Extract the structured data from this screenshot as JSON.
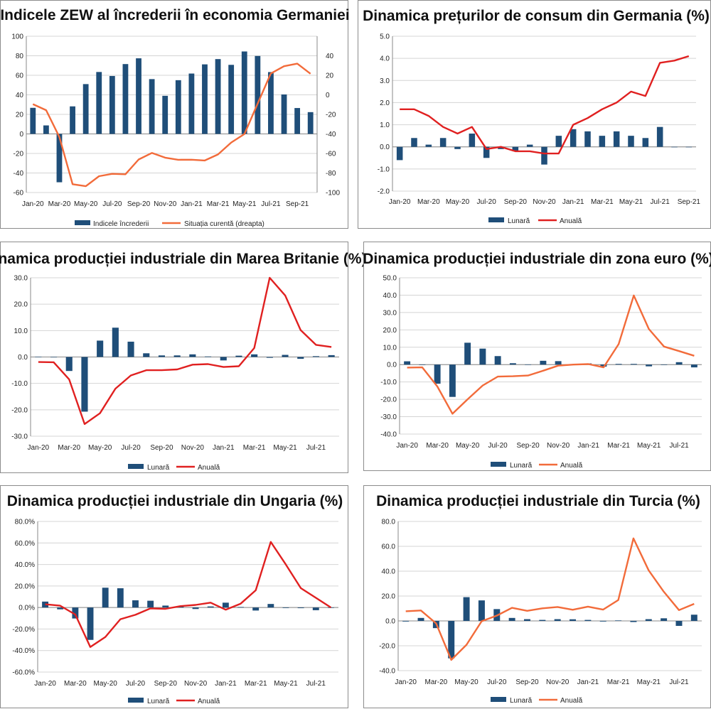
{
  "colors": {
    "bar": "#1f4e79",
    "red": "#e02020",
    "orange": "#f26b3a",
    "grid": "#d4d4d4",
    "axis": "#888888"
  },
  "chart_data": [
    {
      "type": "bar",
      "title": "Indicele ZEW al încrederii în economia Germaniei",
      "categories": [
        "Jan-20",
        "Feb-20",
        "Mar-20",
        "Apr-20",
        "May-20",
        "Jun-20",
        "Jul-20",
        "Aug-20",
        "Sep-20",
        "Oct-20",
        "Nov-20",
        "Dec-20",
        "Jan-21",
        "Feb-21",
        "Mar-21",
        "Apr-21",
        "May-21",
        "Jun-21",
        "Jul-21",
        "Aug-21",
        "Sep-21",
        "Oct-21"
      ],
      "xtick_labels": [
        "Jan-20",
        "Mar-20",
        "May-20",
        "Jul-20",
        "Sep-20",
        "Nov-20",
        "Jan-21",
        "Mar-21",
        "May-21",
        "Jul-21",
        "Sep-21"
      ],
      "series": [
        {
          "name": "Indicele încrederii",
          "kind": "bar",
          "axis": "left",
          "color": "#1f4e79",
          "values": [
            26.7,
            8.7,
            -49.5,
            28.2,
            51.0,
            63.4,
            59.3,
            71.5,
            77.4,
            56.1,
            39.0,
            55.0,
            61.8,
            71.2,
            76.6,
            70.7,
            84.4,
            79.8,
            63.3,
            40.4,
            26.5,
            22.3
          ]
        },
        {
          "name": "Situația curentă (dreapta)",
          "kind": "line",
          "axis": "right",
          "color": "#f26b3a",
          "values": [
            -9.5,
            -15.7,
            -43.1,
            -91.5,
            -93.5,
            -83.3,
            -80.9,
            -81.3,
            -66.2,
            -59.5,
            -64.3,
            -66.5,
            -66.4,
            -67.2,
            -61.0,
            -48.8,
            -40.1,
            -9.1,
            21.9,
            29.3,
            31.9,
            21.6
          ]
        }
      ],
      "ylim_left": [
        -60,
        100
      ],
      "yticks_left": [
        "100",
        "80",
        "60",
        "40",
        "20",
        "0",
        "-20",
        "-40",
        "-60"
      ],
      "ylim_right": [
        -100,
        60
      ],
      "yticks_right": [
        "40",
        "20",
        "0",
        "-20",
        "-40",
        "-60",
        "-80",
        "-100"
      ]
    },
    {
      "type": "bar",
      "title": "Dinamica prețurilor de consum din Germania (%)",
      "categories": [
        "Jan-20",
        "Feb-20",
        "Mar-20",
        "Apr-20",
        "May-20",
        "Jun-20",
        "Jul-20",
        "Aug-20",
        "Sep-20",
        "Oct-20",
        "Nov-20",
        "Dec-20",
        "Jan-21",
        "Feb-21",
        "Mar-21",
        "Apr-21",
        "May-21",
        "Jun-21",
        "Jul-21",
        "Aug-21",
        "Sep-21"
      ],
      "xtick_labels": [
        "Jan-20",
        "Mar-20",
        "May-20",
        "Jul-20",
        "Sep-20",
        "Nov-20",
        "Jan-21",
        "Mar-21",
        "May-21",
        "Jul-21",
        "Sep-21"
      ],
      "series": [
        {
          "name": "Lunară",
          "kind": "bar",
          "color": "#1f4e79",
          "values": [
            -0.6,
            0.4,
            0.1,
            0.4,
            -0.1,
            0.6,
            -0.5,
            -0.1,
            -0.2,
            0.1,
            -0.8,
            0.5,
            0.8,
            0.7,
            0.5,
            0.7,
            0.5,
            0.4,
            0.9,
            0.0,
            0.0
          ]
        },
        {
          "name": "Anuală",
          "kind": "line",
          "color": "#e02020",
          "values": [
            1.7,
            1.7,
            1.4,
            0.9,
            0.6,
            0.9,
            -0.1,
            0.0,
            -0.2,
            -0.2,
            -0.3,
            -0.3,
            1.0,
            1.3,
            1.7,
            2.0,
            2.5,
            2.3,
            3.8,
            3.9,
            4.1
          ]
        }
      ],
      "ylim": [
        -2,
        5
      ],
      "yticks": [
        "5.0",
        "4.0",
        "3.0",
        "2.0",
        "1.0",
        "0.0",
        "-1.0",
        "-2.0"
      ]
    },
    {
      "type": "bar",
      "title": "Dinamica producției industriale din Marea Britanie (%)",
      "categories": [
        "Jan-20",
        "Feb-20",
        "Mar-20",
        "Apr-20",
        "May-20",
        "Jun-20",
        "Jul-20",
        "Aug-20",
        "Sep-20",
        "Oct-20",
        "Nov-20",
        "Dec-20",
        "Jan-21",
        "Feb-21",
        "Mar-21",
        "Apr-21",
        "May-21",
        "Jun-21",
        "Jul-21",
        "Aug-21"
      ],
      "xtick_labels": [
        "Jan-20",
        "Mar-20",
        "May-20",
        "Jul-20",
        "Sep-20",
        "Nov-20",
        "Jan-21",
        "Mar-21",
        "May-21",
        "Jul-21"
      ],
      "series": [
        {
          "name": "Lunară",
          "kind": "bar",
          "color": "#1f4e79",
          "values": [
            0.1,
            -0.1,
            -5.3,
            -20.7,
            6.2,
            11.1,
            5.8,
            1.4,
            0.6,
            0.6,
            1.0,
            0.2,
            -1.3,
            0.5,
            1.0,
            -0.3,
            0.8,
            -0.7,
            0.3,
            0.7
          ]
        },
        {
          "name": "Anuală",
          "kind": "line",
          "color": "#e02020",
          "values": [
            -1.9,
            -2.0,
            -8.5,
            -25.4,
            -21.3,
            -12.0,
            -7.0,
            -5.0,
            -5.0,
            -4.7,
            -2.9,
            -2.7,
            -3.8,
            -3.5,
            3.4,
            30.0,
            23.3,
            10.2,
            4.6,
            3.8
          ]
        }
      ],
      "ylim": [
        -30,
        30
      ],
      "yticks": [
        "30.0",
        "20.0",
        "10.0",
        "0.0",
        "-10.0",
        "-20.0",
        "-30.0"
      ]
    },
    {
      "type": "bar",
      "title": "Dinamica producției industriale din zona euro (%)",
      "categories": [
        "Jan-20",
        "Feb-20",
        "Mar-20",
        "Apr-20",
        "May-20",
        "Jun-20",
        "Jul-20",
        "Aug-20",
        "Sep-20",
        "Oct-20",
        "Nov-20",
        "Dec-20",
        "Jan-21",
        "Feb-21",
        "Mar-21",
        "Apr-21",
        "May-21",
        "Jun-21",
        "Jul-21",
        "Aug-21"
      ],
      "xtick_labels": [
        "Jan-20",
        "Mar-20",
        "May-20",
        "Jul-20",
        "Sep-20",
        "Nov-20",
        "Jan-21",
        "Mar-21",
        "May-21",
        "Jul-21"
      ],
      "series": [
        {
          "name": "Lunară",
          "kind": "bar",
          "color": "#1f4e79",
          "values": [
            1.9,
            0.0,
            -11.0,
            -18.6,
            12.6,
            9.2,
            4.9,
            0.8,
            0.1,
            2.2,
            2.0,
            -0.1,
            0.7,
            -1.2,
            0.4,
            0.4,
            -1.0,
            -0.1,
            1.4,
            -1.6
          ]
        },
        {
          "name": "Anuală",
          "kind": "line",
          "color": "#f26b3a",
          "values": [
            -1.7,
            -1.6,
            -12.6,
            -28.3,
            -20.0,
            -12.0,
            -6.9,
            -6.7,
            -6.3,
            -3.5,
            -0.6,
            0.0,
            0.3,
            -1.6,
            11.8,
            39.8,
            20.5,
            10.4,
            7.8,
            5.1
          ]
        }
      ],
      "ylim": [
        -40,
        50
      ],
      "yticks": [
        "50.0",
        "40.0",
        "30.0",
        "20.0",
        "10.0",
        "0.0",
        "-10.0",
        "-20.0",
        "-30.0",
        "-40.0"
      ]
    },
    {
      "type": "bar",
      "title": "Dinamica producției industriale din Ungaria (%)",
      "categories": [
        "Jan-20",
        "Feb-20",
        "Mar-20",
        "Apr-20",
        "May-20",
        "Jun-20",
        "Jul-20",
        "Aug-20",
        "Sep-20",
        "Oct-20",
        "Nov-20",
        "Dec-20",
        "Jan-21",
        "Feb-21",
        "Mar-21",
        "Apr-21",
        "May-21",
        "Jun-21",
        "Jul-21",
        "Aug-21"
      ],
      "xtick_labels": [
        "Jan-20",
        "Mar-20",
        "May-20",
        "Jul-20",
        "Sep-20",
        "Nov-20",
        "Jan-21",
        "Mar-21",
        "May-21",
        "Jul-21"
      ],
      "series": [
        {
          "name": "Lunară",
          "kind": "bar",
          "color": "#1f4e79",
          "values": [
            5.5,
            -1.7,
            -10.2,
            -30.1,
            18.4,
            17.9,
            6.7,
            6.3,
            1.8,
            1.3,
            -1.4,
            1.0,
            4.5,
            0.5,
            -2.8,
            3.3,
            -0.5,
            -0.6,
            -2.5,
            0.0
          ]
        },
        {
          "name": "Anuală",
          "kind": "line",
          "color": "#e02020",
          "values": [
            3.0,
            1.7,
            -6.5,
            -36.7,
            -27.4,
            -10.9,
            -6.8,
            -0.8,
            -1.2,
            1.3,
            2.4,
            4.5,
            -2.0,
            3.6,
            16.0,
            61.0,
            40.0,
            18.0,
            9.0,
            0.0
          ]
        }
      ],
      "ylim": [
        -60,
        80
      ],
      "yticks": [
        "80.0%",
        "60.0%",
        "40.0%",
        "20.0%",
        "0.0%",
        "-20.0%",
        "-40.0%",
        "-60.0%"
      ]
    },
    {
      "type": "bar",
      "title": "Dinamica producției industriale din Turcia (%)",
      "categories": [
        "Jan-20",
        "Feb-20",
        "Mar-20",
        "Apr-20",
        "May-20",
        "Jun-20",
        "Jul-20",
        "Aug-20",
        "Sep-20",
        "Oct-20",
        "Nov-20",
        "Dec-20",
        "Jan-21",
        "Feb-21",
        "Mar-21",
        "Apr-21",
        "May-21",
        "Jun-21",
        "Jul-21",
        "Aug-21"
      ],
      "xtick_labels": [
        "Jan-20",
        "Mar-20",
        "May-20",
        "Jul-20",
        "Sep-20",
        "Nov-20",
        "Jan-21",
        "Mar-21",
        "May-21",
        "Jul-21"
      ],
      "series": [
        {
          "name": "Lunară",
          "kind": "bar",
          "color": "#1f4e79",
          "values": [
            -0.5,
            2.4,
            -5.8,
            -30.1,
            19.1,
            16.5,
            9.5,
            2.4,
            1.4,
            0.8,
            1.4,
            1.3,
            0.8,
            -0.5,
            0.4,
            -0.9,
            1.4,
            2.1,
            -4.0,
            5.0
          ]
        },
        {
          "name": "Anuală",
          "kind": "line",
          "color": "#f26b3a",
          "values": [
            7.8,
            8.4,
            -2.0,
            -31.4,
            -19.2,
            -0.3,
            4.3,
            10.5,
            8.1,
            10.1,
            11.2,
            9.0,
            11.5,
            9.1,
            16.8,
            66.4,
            40.7,
            23.5,
            8.7,
            13.7
          ]
        }
      ],
      "ylim": [
        -40,
        80
      ],
      "yticks": [
        "80.0",
        "60.0",
        "40.0",
        "20.0",
        "0.0",
        "-20.0",
        "-40.0"
      ]
    }
  ]
}
